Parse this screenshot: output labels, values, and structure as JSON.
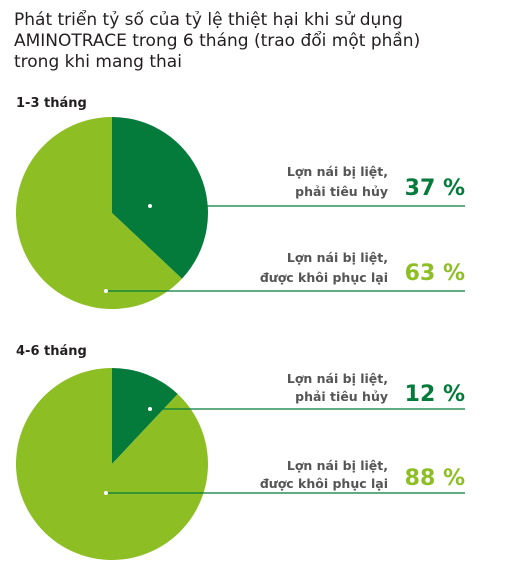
{
  "title_lines": [
    "Phát triển tỷ số của tỷ lệ thiệt hại khi sử dụng",
    "AMINOTRACE trong 6 tháng (trao đổi một phần)",
    "trong khi mang thai"
  ],
  "colors": {
    "dark_green": "#047a3b",
    "light_green": "#8dbf24",
    "line": "#047a3b"
  },
  "chart_data": [
    {
      "type": "pie",
      "title": "1-3 tháng",
      "slices": [
        {
          "label_lines": [
            "Lợn nái bị liệt,",
            "phải tiêu hủy"
          ],
          "value": 37,
          "value_text": "37 %",
          "color": "#047a3b"
        },
        {
          "label_lines": [
            "Lợn nái bị liệt,",
            "được khôi phục lại"
          ],
          "value": 63,
          "value_text": "63 %",
          "color": "#8dbf24"
        }
      ]
    },
    {
      "type": "pie",
      "title": "4-6 tháng",
      "slices": [
        {
          "label_lines": [
            "Lợn nái bị  liệt,",
            "phải tiêu hủy"
          ],
          "value": 12,
          "value_text": "12 %",
          "color": "#047a3b"
        },
        {
          "label_lines": [
            "Lợn nái bị liệt,",
            "được khôi phục lại"
          ],
          "value": 88,
          "value_text": "88 %",
          "color": "#8dbf24"
        }
      ]
    }
  ]
}
